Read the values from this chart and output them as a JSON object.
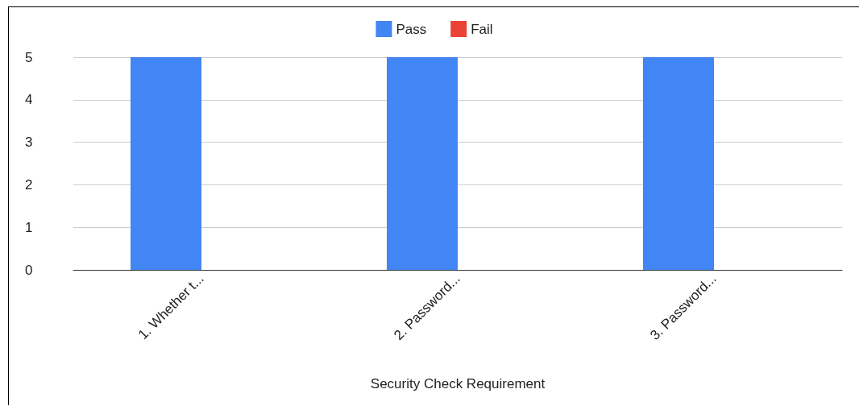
{
  "chart_data": {
    "type": "bar",
    "xlabel": "Security Check Requirement",
    "categories": [
      "1. Whether t...",
      "2. Password...",
      "3. Password..."
    ],
    "series": [
      {
        "name": "Pass",
        "color": "#4285f4",
        "values": [
          5,
          5,
          5
        ]
      },
      {
        "name": "Fail",
        "color": "#ea4335",
        "values": [
          0,
          0,
          0
        ]
      }
    ],
    "ylim": [
      0,
      5
    ],
    "yticks": [
      0,
      1,
      2,
      3,
      4,
      5
    ],
    "grid": "y",
    "legend": "top"
  }
}
